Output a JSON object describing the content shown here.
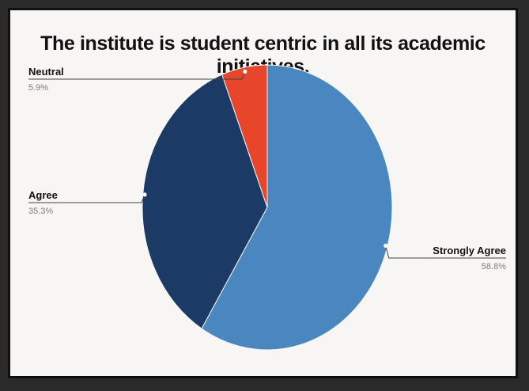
{
  "chart_data": {
    "type": "pie",
    "title": "The institute is student centric in all its academic initiatives.",
    "slices": [
      {
        "label": "Strongly Agree",
        "value": 58.8,
        "display": "58.8%",
        "color": "#4a86c0"
      },
      {
        "label": "Agree",
        "value": 35.3,
        "display": "35.3%",
        "color": "#1c3a66"
      },
      {
        "label": "Neutral",
        "value": 5.9,
        "display": "5.9%",
        "color": "#e8462a"
      }
    ],
    "start": "top, clockwise",
    "legend": "callout labels"
  }
}
